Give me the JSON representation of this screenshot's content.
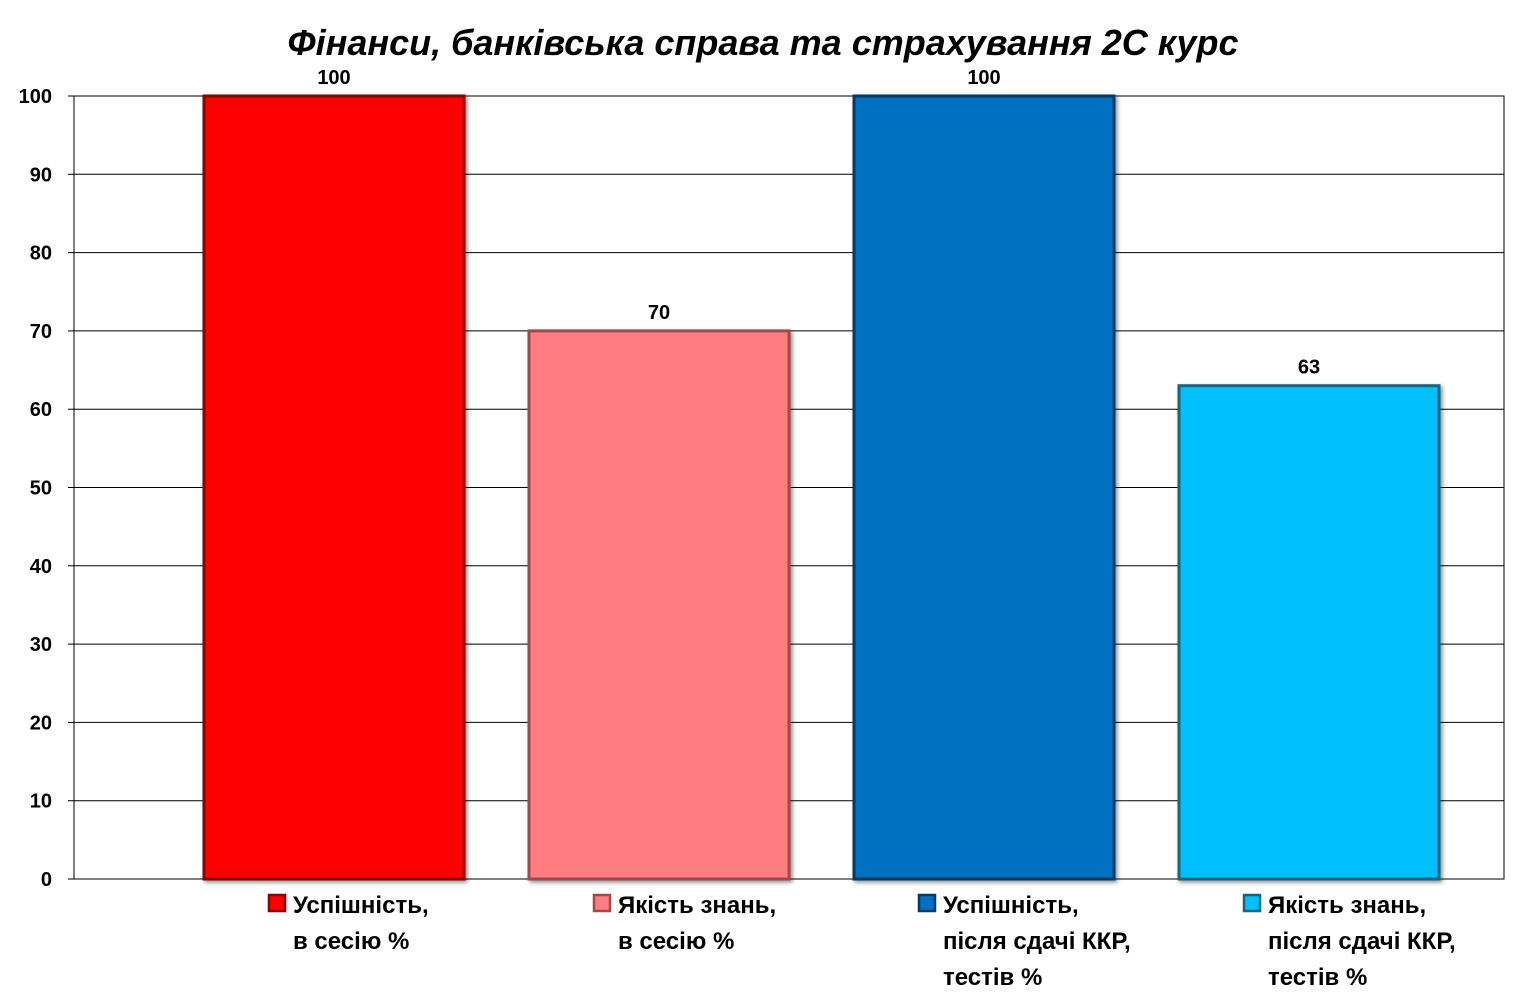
{
  "chart_data": {
    "type": "bar",
    "title": "Фінанси, банківська справа та страхування 2С курс",
    "xlabel": "",
    "ylabel": "",
    "ylim": [
      0,
      100
    ],
    "yticks": [
      0,
      10,
      20,
      30,
      40,
      50,
      60,
      70,
      80,
      90,
      100
    ],
    "grid": true,
    "legend_position": "bottom",
    "series": [
      {
        "name": "Успішність, в сесію %",
        "name_lines": [
          "Успішність,",
          "в сесію %"
        ],
        "value": 100,
        "value_label": "100",
        "color": "#ff0000",
        "edge": "#8b0000"
      },
      {
        "name": "Якість знань, в сесію %",
        "name_lines": [
          "Якість знань,",
          "в сесію %"
        ],
        "value": 70,
        "value_label": "70",
        "color": "#ff7c80",
        "edge": "#a04a4c"
      },
      {
        "name": "Успішність, після сдачі ККР, тестів %",
        "name_lines": [
          "Успішність,",
          "після сдачі ККР,",
          "тестів %"
        ],
        "value": 100,
        "value_label": "100",
        "color": "#0070c0",
        "edge": "#003a66"
      },
      {
        "name": "Якість знань, після сдачі ККР, тестів %",
        "name_lines": [
          "Якість знань,",
          "після сдачі ККР,",
          "тестів %"
        ],
        "value": 63,
        "value_label": "63",
        "color": "#00bfff",
        "edge": "#13667f"
      }
    ]
  }
}
